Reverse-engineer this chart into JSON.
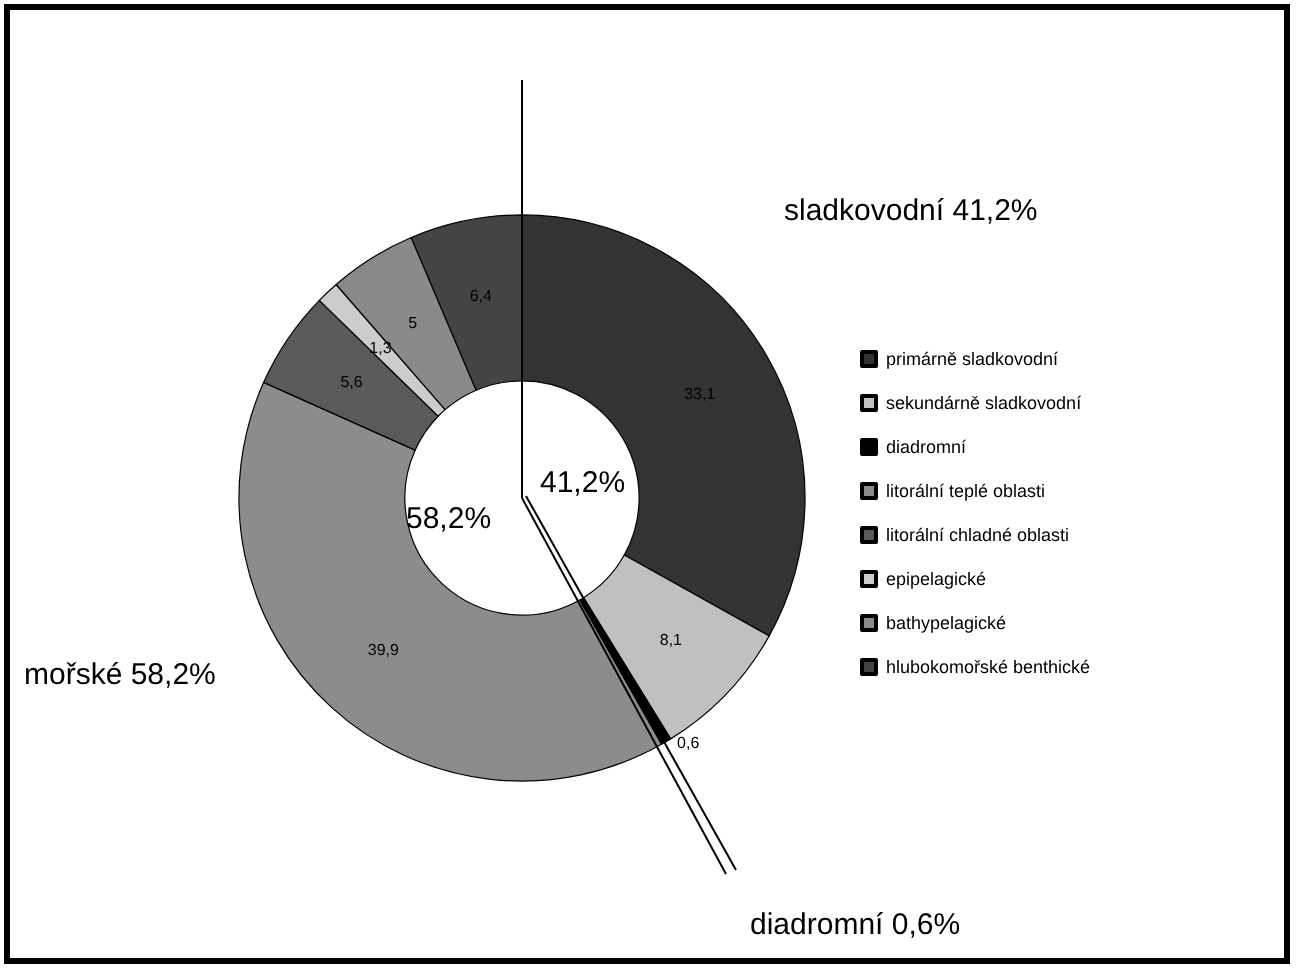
{
  "chart_data": {
    "type": "donut",
    "categories": [
      "primárně sladkovodní",
      "sekundárně sladkovodní",
      "diadromní",
      "litorální teplé oblasti",
      "litorální chladné oblasti",
      "epipelagické",
      "bathypelagické",
      "hlubokomořské benthické"
    ],
    "values": [
      33.1,
      8.1,
      0.6,
      39.9,
      5.6,
      1.3,
      5,
      6.4
    ],
    "value_labels": [
      "33,1",
      "8,1",
      "0,6",
      "39,9",
      "5,6",
      "1,3",
      "5",
      "6,4"
    ],
    "colors": [
      "#333333",
      "#c0c0c0",
      "#000000",
      "#8c8c8c",
      "#5a5a5a",
      "#cccccc",
      "#8a8a8a",
      "#444444"
    ],
    "legend": "right",
    "annotations": [
      "sladkovodní 41,2%",
      "mořské 58,2%",
      "diadromní 0,6%",
      "41,2%",
      "58,2%"
    ]
  }
}
